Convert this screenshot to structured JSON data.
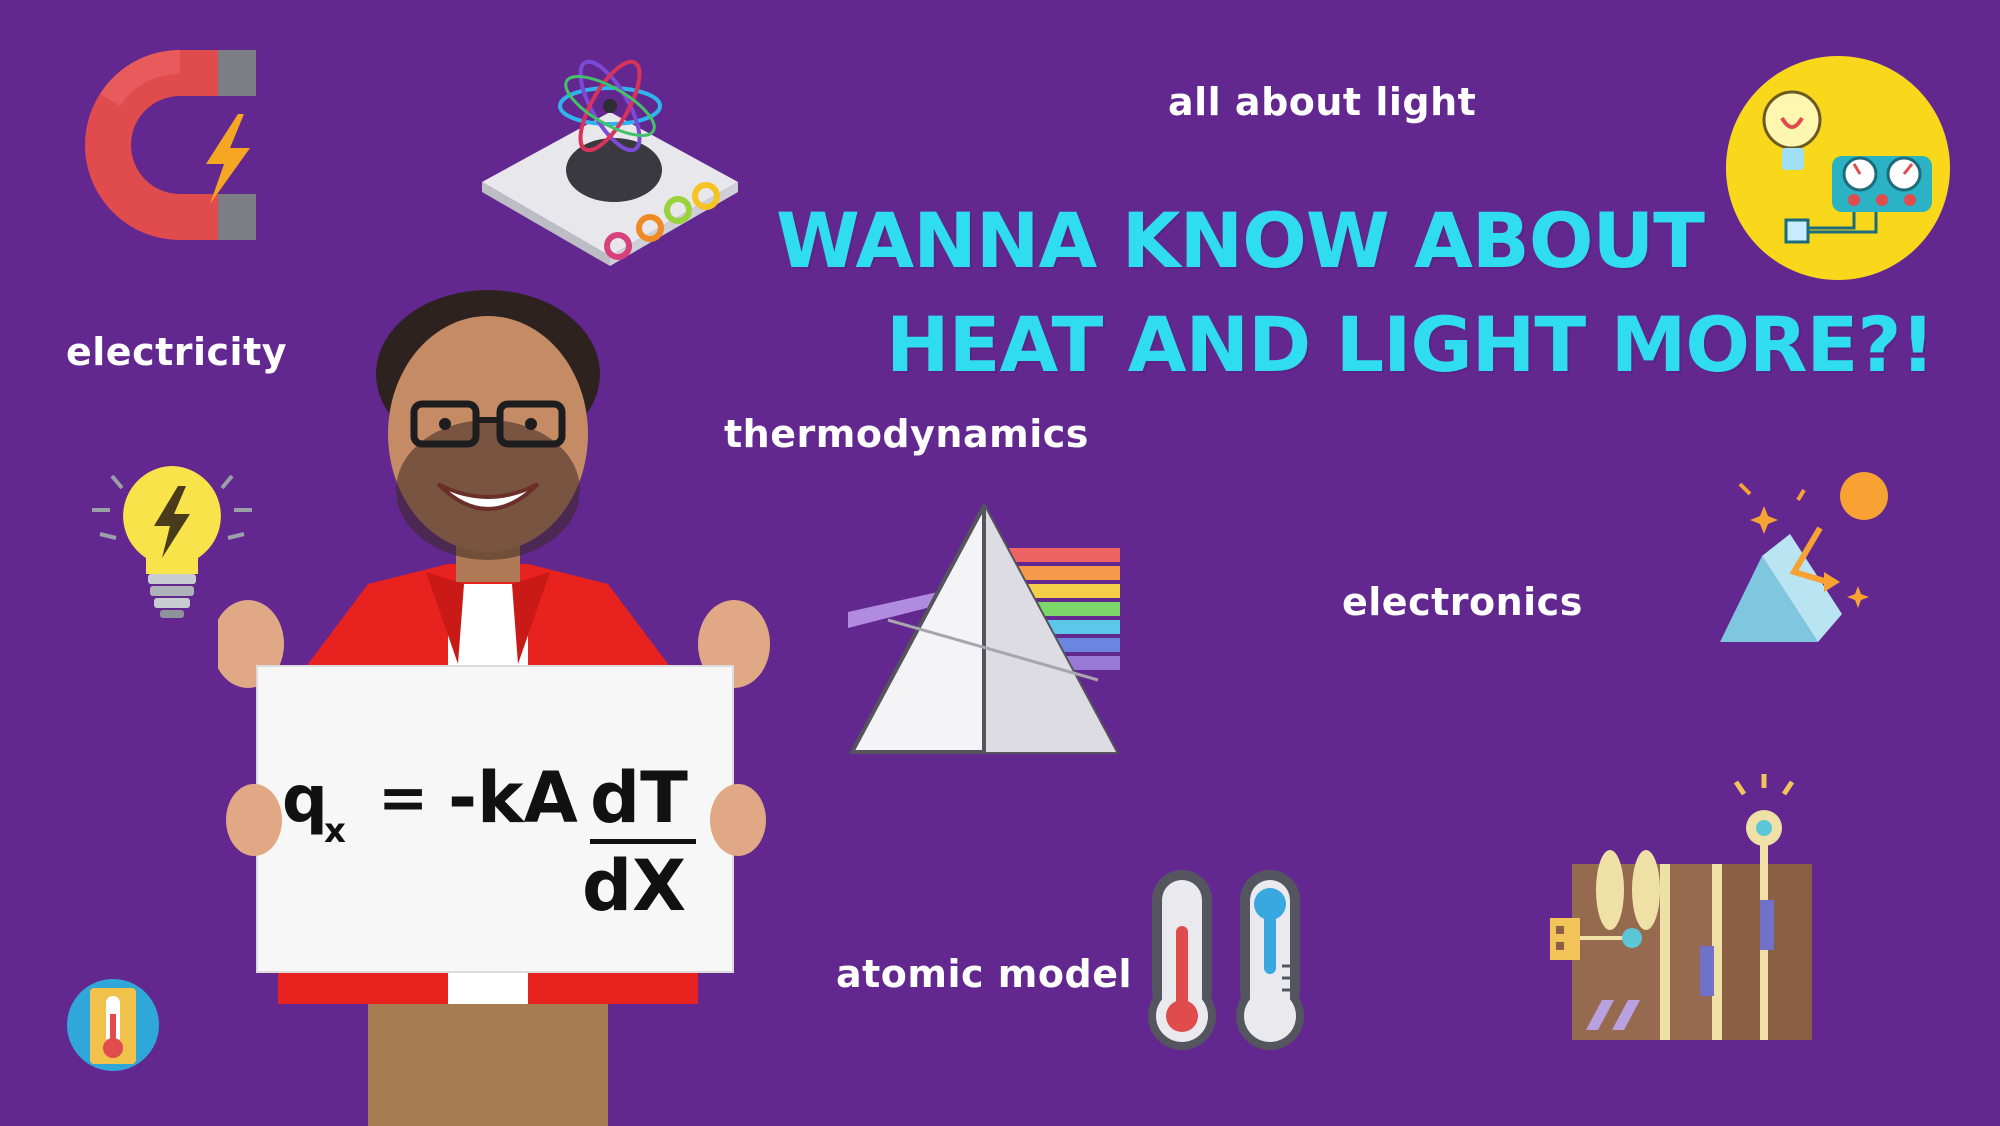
{
  "headline": {
    "line1": "WANNA KNOW ABOUT",
    "line2": "HEAT AND LIGHT MORE?!"
  },
  "topics": {
    "all_about_light": "all about light",
    "electricity": "electricity",
    "thermodynamics": "thermodynamics",
    "electronics": "electronics",
    "atomic_model": "atomic model"
  },
  "sign": {
    "lhs": "q",
    "lhs_subscript": "x",
    "equals": "=",
    "rhs_prefix": "-kA",
    "numerator": "dT",
    "denominator": "dX"
  },
  "colors": {
    "background": "#62288f",
    "headline": "#2fdcf0",
    "label": "#ffffff",
    "shirt": "#e8221f",
    "board": "#f7f7f7"
  },
  "icons": [
    "magnet-icon",
    "atom-icon",
    "light-panel-icon",
    "light-bulb-icon",
    "prism-icon",
    "sun-prism-icon",
    "thermometers-icon",
    "thermometer-badge-icon",
    "circuit-board-icon"
  ]
}
